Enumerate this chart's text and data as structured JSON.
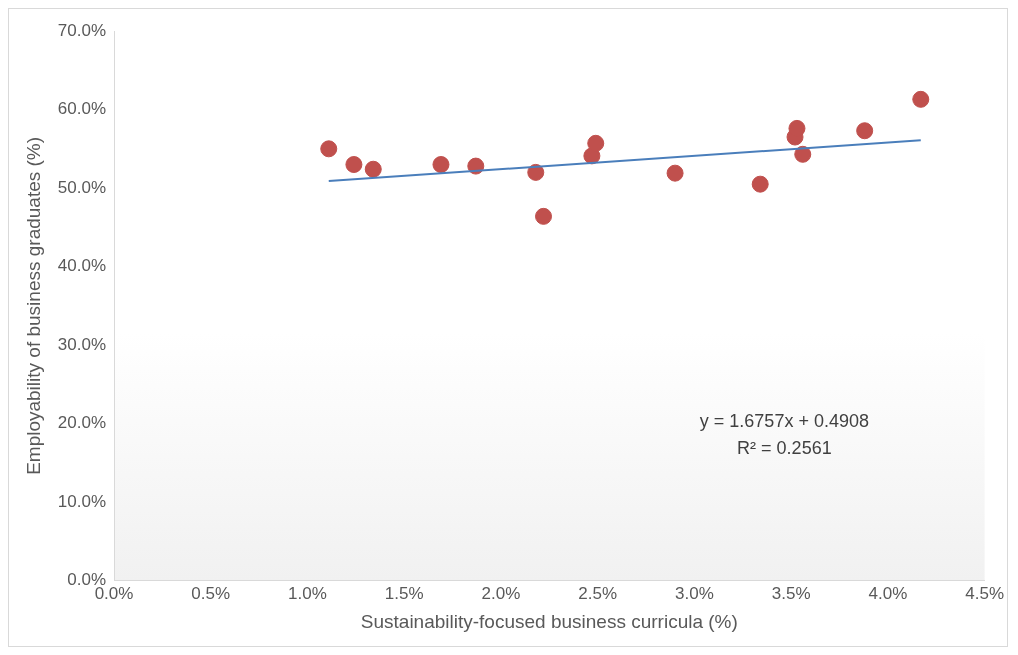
{
  "chart_data": {
    "type": "scatter",
    "xlabel": "Sustainability-focused business curricula (%)",
    "ylabel": "Employability of business graduates (%)",
    "xlim": [
      0,
      4.5
    ],
    "xticks": [
      {
        "value": 0,
        "label": "0.0%"
      },
      {
        "value": 0.5,
        "label": "0.5%"
      },
      {
        "value": 1,
        "label": "1.0%"
      },
      {
        "value": 1.5,
        "label": "1.5%"
      },
      {
        "value": 2,
        "label": "2.0%"
      },
      {
        "value": 2.5,
        "label": "2.5%"
      },
      {
        "value": 3,
        "label": "3.0%"
      },
      {
        "value": 3.5,
        "label": "3.5%"
      },
      {
        "value": 4,
        "label": "4.0%"
      },
      {
        "value": 4.5,
        "label": "4.5%"
      }
    ],
    "ylim": [
      0,
      70
    ],
    "yticks": [
      {
        "value": 0,
        "label": "0.0%"
      },
      {
        "value": 10,
        "label": "10.0%"
      },
      {
        "value": 20,
        "label": "20.0%"
      },
      {
        "value": 30,
        "label": "30.0%"
      },
      {
        "value": 40,
        "label": "40.0%"
      },
      {
        "value": 50,
        "label": "50.0%"
      },
      {
        "value": 60,
        "label": "60.0%"
      },
      {
        "value": 70,
        "label": "70.0%"
      }
    ],
    "grid": false,
    "legend": false,
    "marker": "circle",
    "series": [
      {
        "color": "#c0504d",
        "x": [
          1.11,
          1.24,
          1.34,
          1.69,
          1.87,
          2.18,
          2.22,
          2.47,
          2.49,
          2.9,
          3.34,
          3.52,
          3.53,
          3.56,
          3.88,
          4.17
        ],
        "values": [
          55.0,
          53.0,
          52.4,
          53.0,
          52.8,
          52.0,
          46.4,
          54.1,
          55.7,
          51.9,
          50.5,
          56.5,
          57.6,
          54.3,
          57.3,
          61.3
        ]
      },
      {
        "type": "line",
        "marker": "none",
        "color": "#4a7ebb",
        "x": [
          1.11,
          4.17
        ],
        "values": [
          50.9,
          56.1
        ]
      }
    ],
    "annotations": [
      "y = 1.6757x + 0.4908",
      "R² = 0.2561"
    ]
  }
}
